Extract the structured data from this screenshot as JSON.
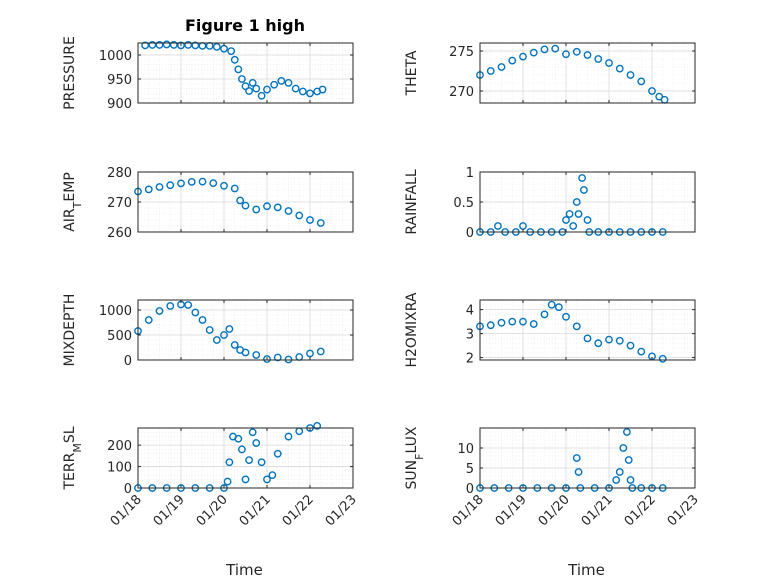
{
  "figure_title": "Figure 1 high",
  "colors": {
    "marker": "#0072BD",
    "axis": "#262626",
    "grid": "#d9d9d9",
    "minor_grid": "#e8e8e8"
  },
  "chart_data": [
    {
      "type": "scatter",
      "title": "Figure 1 high",
      "xlabel": "",
      "ylabel": "PRESSURE",
      "xlim": [
        "01/18",
        "01/23"
      ],
      "ylim": [
        900,
        1025
      ],
      "yticks": [
        900,
        950,
        1000
      ],
      "xticks": [
        "01/18",
        "01/19",
        "01/20",
        "01/21",
        "01/22",
        "01/23"
      ],
      "grid": true,
      "series": [
        {
          "values": [
            [
              "01/18 04:00",
              1020
            ],
            [
              "01/18 08:00",
              1021
            ],
            [
              "01/18 12:00",
              1021
            ],
            [
              "01/18 16:00",
              1022
            ],
            [
              "01/18 20:00",
              1021
            ],
            [
              "01/19 00:00",
              1020
            ],
            [
              "01/19 04:00",
              1021
            ],
            [
              "01/19 08:00",
              1020
            ],
            [
              "01/19 12:00",
              1019
            ],
            [
              "01/19 16:00",
              1019
            ],
            [
              "01/19 20:00",
              1017
            ],
            [
              "01/20 00:00",
              1013
            ],
            [
              "01/20 04:00",
              1008
            ],
            [
              "01/20 06:00",
              990
            ],
            [
              "01/20 08:00",
              970
            ],
            [
              "01/20 10:00",
              950
            ],
            [
              "01/20 12:00",
              935
            ],
            [
              "01/20 14:00",
              925
            ],
            [
              "01/20 16:00",
              942
            ],
            [
              "01/20 18:00",
              930
            ],
            [
              "01/20 21:00",
              915
            ],
            [
              "01/21 00:00",
              928
            ],
            [
              "01/21 04:00",
              938
            ],
            [
              "01/21 08:00",
              946
            ],
            [
              "01/21 12:00",
              942
            ],
            [
              "01/21 16:00",
              930
            ],
            [
              "01/21 20:00",
              924
            ],
            [
              "01/22 00:00",
              920
            ],
            [
              "01/22 04:00",
              924
            ],
            [
              "01/22 07:00",
              928
            ]
          ]
        }
      ]
    },
    {
      "type": "scatter",
      "title": "",
      "xlabel": "",
      "ylabel": "THETA",
      "xlim": [
        "01/18",
        "01/23"
      ],
      "ylim": [
        268.5,
        276
      ],
      "yticks": [
        270,
        275
      ],
      "xticks": [
        "01/18",
        "01/19",
        "01/20",
        "01/21",
        "01/22",
        "01/23"
      ],
      "grid": true,
      "series": [
        {
          "values": [
            [
              "01/18 00:00",
              272.0
            ],
            [
              "01/18 06:00",
              272.5
            ],
            [
              "01/18 12:00",
              273.0
            ],
            [
              "01/18 18:00",
              273.8
            ],
            [
              "01/19 00:00",
              274.3
            ],
            [
              "01/19 06:00",
              274.8
            ],
            [
              "01/19 12:00",
              275.2
            ],
            [
              "01/19 18:00",
              275.3
            ],
            [
              "01/20 00:00",
              274.6
            ],
            [
              "01/20 06:00",
              274.9
            ],
            [
              "01/20 12:00",
              274.5
            ],
            [
              "01/20 18:00",
              274.0
            ],
            [
              "01/21 00:00",
              273.5
            ],
            [
              "01/21 06:00",
              272.8
            ],
            [
              "01/21 12:00",
              272.0
            ],
            [
              "01/21 18:00",
              271.2
            ],
            [
              "01/22 00:00",
              270.0
            ],
            [
              "01/22 04:00",
              269.3
            ],
            [
              "01/22 07:00",
              268.9
            ]
          ]
        }
      ]
    },
    {
      "type": "scatter",
      "title": "",
      "xlabel": "",
      "ylabel": "AIR_TEMP",
      "xlim": [
        "01/18",
        "01/23"
      ],
      "ylim": [
        260,
        280
      ],
      "yticks": [
        260,
        270,
        280
      ],
      "xticks": [
        "01/18",
        "01/19",
        "01/20",
        "01/21",
        "01/22",
        "01/23"
      ],
      "grid": true,
      "series": [
        {
          "values": [
            [
              "01/18 00:00",
              273.5
            ],
            [
              "01/18 06:00",
              274.2
            ],
            [
              "01/18 12:00",
              275.0
            ],
            [
              "01/18 18:00",
              275.6
            ],
            [
              "01/19 00:00",
              276.2
            ],
            [
              "01/19 06:00",
              276.7
            ],
            [
              "01/19 12:00",
              276.8
            ],
            [
              "01/19 18:00",
              276.3
            ],
            [
              "01/20 00:00",
              275.4
            ],
            [
              "01/20 06:00",
              274.5
            ],
            [
              "01/20 09:00",
              270.5
            ],
            [
              "01/20 12:00",
              268.8
            ],
            [
              "01/20 18:00",
              267.5
            ],
            [
              "01/21 00:00",
              268.6
            ],
            [
              "01/21 06:00",
              268.2
            ],
            [
              "01/21 12:00",
              267.0
            ],
            [
              "01/21 18:00",
              265.5
            ],
            [
              "01/22 00:00",
              264.0
            ],
            [
              "01/22 06:00",
              263.0
            ]
          ]
        }
      ]
    },
    {
      "type": "scatter",
      "title": "",
      "xlabel": "",
      "ylabel": "RAINFALL",
      "xlim": [
        "01/18",
        "01/23"
      ],
      "ylim": [
        0,
        1
      ],
      "yticks": [
        0,
        0.5,
        1
      ],
      "xticks": [
        "01/18",
        "01/19",
        "01/20",
        "01/21",
        "01/22",
        "01/23"
      ],
      "grid": true,
      "series": [
        {
          "values": [
            [
              "01/18 00:00",
              0
            ],
            [
              "01/18 06:00",
              0
            ],
            [
              "01/18 10:00",
              0.1
            ],
            [
              "01/18 14:00",
              0
            ],
            [
              "01/18 20:00",
              0
            ],
            [
              "01/19 00:00",
              0.1
            ],
            [
              "01/19 04:00",
              0
            ],
            [
              "01/19 10:00",
              0
            ],
            [
              "01/19 16:00",
              0
            ],
            [
              "01/19 22:00",
              0
            ],
            [
              "01/20 00:00",
              0.2
            ],
            [
              "01/20 02:00",
              0.3
            ],
            [
              "01/20 04:00",
              0.1
            ],
            [
              "01/20 06:00",
              0.5
            ],
            [
              "01/20 07:00",
              0.3
            ],
            [
              "01/20 09:00",
              0.9
            ],
            [
              "01/20 10:00",
              0.7
            ],
            [
              "01/20 12:00",
              0.2
            ],
            [
              "01/20 13:00",
              0
            ],
            [
              "01/20 18:00",
              0
            ],
            [
              "01/21 00:00",
              0
            ],
            [
              "01/21 06:00",
              0
            ],
            [
              "01/21 12:00",
              0
            ],
            [
              "01/21 18:00",
              0
            ],
            [
              "01/22 00:00",
              0
            ],
            [
              "01/22 06:00",
              0
            ]
          ]
        }
      ]
    },
    {
      "type": "scatter",
      "title": "",
      "xlabel": "",
      "ylabel": "MIXDEPTH",
      "xlim": [
        "01/18",
        "01/23"
      ],
      "ylim": [
        0,
        1200
      ],
      "yticks": [
        0,
        500,
        1000
      ],
      "xticks": [
        "01/18",
        "01/19",
        "01/20",
        "01/21",
        "01/22",
        "01/23"
      ],
      "grid": true,
      "series": [
        {
          "values": [
            [
              "01/18 00:00",
              580
            ],
            [
              "01/18 06:00",
              800
            ],
            [
              "01/18 12:00",
              980
            ],
            [
              "01/18 18:00",
              1080
            ],
            [
              "01/19 00:00",
              1110
            ],
            [
              "01/19 04:00",
              1100
            ],
            [
              "01/19 08:00",
              950
            ],
            [
              "01/19 12:00",
              800
            ],
            [
              "01/19 16:00",
              600
            ],
            [
              "01/19 20:00",
              400
            ],
            [
              "01/20 00:00",
              500
            ],
            [
              "01/20 03:00",
              620
            ],
            [
              "01/20 06:00",
              300
            ],
            [
              "01/20 09:00",
              200
            ],
            [
              "01/20 12:00",
              150
            ],
            [
              "01/20 18:00",
              100
            ],
            [
              "01/21 00:00",
              20
            ],
            [
              "01/21 06:00",
              50
            ],
            [
              "01/21 12:00",
              10
            ],
            [
              "01/21 18:00",
              60
            ],
            [
              "01/22 00:00",
              130
            ],
            [
              "01/22 06:00",
              170
            ]
          ]
        }
      ]
    },
    {
      "type": "scatter",
      "title": "",
      "xlabel": "",
      "ylabel": "H2OMIXRA",
      "xlim": [
        "01/18",
        "01/23"
      ],
      "ylim": [
        1.9,
        4.4
      ],
      "yticks": [
        2,
        3,
        4
      ],
      "xticks": [
        "01/18",
        "01/19",
        "01/20",
        "01/21",
        "01/22",
        "01/23"
      ],
      "grid": true,
      "series": [
        {
          "values": [
            [
              "01/18 00:00",
              3.3
            ],
            [
              "01/18 06:00",
              3.35
            ],
            [
              "01/18 12:00",
              3.45
            ],
            [
              "01/18 18:00",
              3.5
            ],
            [
              "01/19 00:00",
              3.5
            ],
            [
              "01/19 06:00",
              3.4
            ],
            [
              "01/19 12:00",
              3.8
            ],
            [
              "01/19 16:00",
              4.2
            ],
            [
              "01/19 20:00",
              4.1
            ],
            [
              "01/20 00:00",
              3.7
            ],
            [
              "01/20 06:00",
              3.3
            ],
            [
              "01/20 12:00",
              2.8
            ],
            [
              "01/20 18:00",
              2.6
            ],
            [
              "01/21 00:00",
              2.75
            ],
            [
              "01/21 06:00",
              2.7
            ],
            [
              "01/21 12:00",
              2.5
            ],
            [
              "01/21 18:00",
              2.25
            ],
            [
              "01/22 00:00",
              2.05
            ],
            [
              "01/22 06:00",
              1.95
            ]
          ]
        }
      ]
    },
    {
      "type": "scatter",
      "title": "",
      "xlabel": "Time",
      "ylabel": "TERR_MSL",
      "xlim": [
        "01/18",
        "01/23"
      ],
      "ylim": [
        0,
        280
      ],
      "yticks": [
        0,
        100,
        200
      ],
      "xticks": [
        "01/18",
        "01/19",
        "01/20",
        "01/21",
        "01/22",
        "01/23"
      ],
      "grid": true,
      "series": [
        {
          "values": [
            [
              "01/18 00:00",
              0
            ],
            [
              "01/18 08:00",
              0
            ],
            [
              "01/18 16:00",
              0
            ],
            [
              "01/19 00:00",
              0
            ],
            [
              "01/19 08:00",
              0
            ],
            [
              "01/19 16:00",
              0
            ],
            [
              "01/20 00:00",
              0
            ],
            [
              "01/20 02:00",
              30
            ],
            [
              "01/20 03:00",
              120
            ],
            [
              "01/20 05:00",
              240
            ],
            [
              "01/20 08:00",
              230
            ],
            [
              "01/20 10:00",
              180
            ],
            [
              "01/20 12:00",
              40
            ],
            [
              "01/20 14:00",
              130
            ],
            [
              "01/20 16:00",
              260
            ],
            [
              "01/20 18:00",
              210
            ],
            [
              "01/20 21:00",
              120
            ],
            [
              "01/21 00:00",
              40
            ],
            [
              "01/21 03:00",
              60
            ],
            [
              "01/21 06:00",
              160
            ],
            [
              "01/21 12:00",
              240
            ],
            [
              "01/21 18:00",
              265
            ],
            [
              "01/22 00:00",
              280
            ],
            [
              "01/22 04:00",
              290
            ]
          ]
        }
      ]
    },
    {
      "type": "scatter",
      "title": "",
      "xlabel": "Time",
      "ylabel": "SUN_FLUX",
      "xlim": [
        "01/18",
        "01/23"
      ],
      "ylim": [
        0,
        15
      ],
      "yticks": [
        0,
        5,
        10
      ],
      "xticks": [
        "01/18",
        "01/19",
        "01/20",
        "01/21",
        "01/22",
        "01/23"
      ],
      "grid": true,
      "series": [
        {
          "values": [
            [
              "01/18 00:00",
              0
            ],
            [
              "01/18 08:00",
              0
            ],
            [
              "01/18 16:00",
              0
            ],
            [
              "01/19 00:00",
              0
            ],
            [
              "01/19 08:00",
              0
            ],
            [
              "01/19 16:00",
              0
            ],
            [
              "01/20 00:00",
              0
            ],
            [
              "01/20 06:00",
              7.5
            ],
            [
              "01/20 07:00",
              4
            ],
            [
              "01/20 08:00",
              0
            ],
            [
              "01/20 16:00",
              0
            ],
            [
              "01/21 00:00",
              0
            ],
            [
              "01/21 04:00",
              2
            ],
            [
              "01/21 06:00",
              4
            ],
            [
              "01/21 08:00",
              10
            ],
            [
              "01/21 10:00",
              14
            ],
            [
              "01/21 11:00",
              7
            ],
            [
              "01/21 12:00",
              2
            ],
            [
              "01/21 13:00",
              0
            ],
            [
              "01/21 18:00",
              0
            ],
            [
              "01/22 00:00",
              0
            ],
            [
              "01/22 06:00",
              0
            ]
          ]
        }
      ]
    }
  ]
}
